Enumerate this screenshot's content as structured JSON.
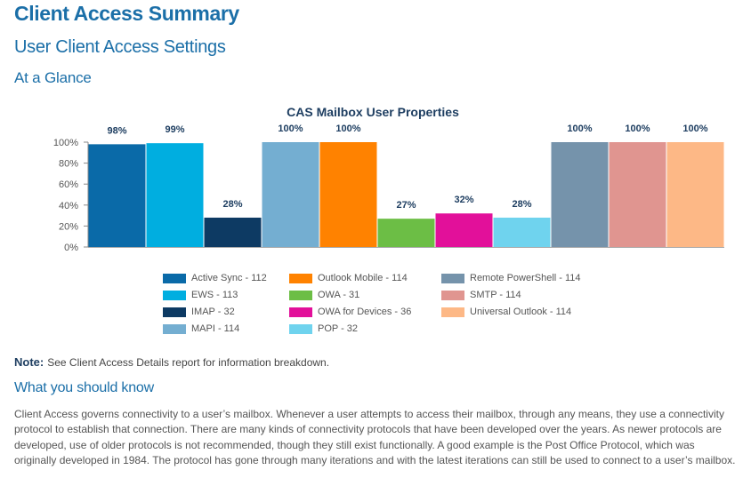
{
  "header": {
    "title": "Client Access Summary",
    "subtitle": "User Client Access Settings",
    "section": "At a Glance"
  },
  "chart_data": {
    "type": "bar",
    "title": "CAS Mailbox User Properties",
    "ylim": [
      0,
      100
    ],
    "y_ticks": [
      "0%",
      "20%",
      "40%",
      "60%",
      "80%",
      "100%"
    ],
    "grid": false,
    "legend_placement": "bottom",
    "categories": [
      "Active Sync - 112",
      "EWS - 113",
      "IMAP - 32",
      "MAPI - 114",
      "Outlook Mobile - 114",
      "OWA - 31",
      "OWA for Devices - 36",
      "POP - 32",
      "Remote PowerShell - 114",
      "SMTP - 114",
      "Universal Outlook - 114"
    ],
    "values": [
      98,
      99,
      28,
      100,
      100,
      27,
      32,
      28,
      100,
      100,
      100
    ],
    "value_labels": [
      "98%",
      "99%",
      "28%",
      "100%",
      "100%",
      "27%",
      "32%",
      "28%",
      "100%",
      "100%",
      "100%"
    ],
    "colors": [
      "#0a6aa8",
      "#00aee0",
      "#0d3a63",
      "#74aed1",
      "#ff8200",
      "#6cbe45",
      "#e2109a",
      "#6fd3ee",
      "#7593ab",
      "#e09590",
      "#fdb886"
    ]
  },
  "legend": {
    "columns": [
      [
        "Active Sync - 112",
        "EWS - 113",
        "IMAP - 32",
        "MAPI - 114"
      ],
      [
        "Outlook Mobile - 114",
        "OWA - 31",
        "OWA for Devices - 36",
        "POP - 32"
      ],
      [
        "Remote PowerShell - 114",
        "SMTP - 114",
        "Universal Outlook - 114"
      ]
    ],
    "colors": [
      [
        "#0a6aa8",
        "#00aee0",
        "#0d3a63",
        "#74aed1"
      ],
      [
        "#ff8200",
        "#6cbe45",
        "#e2109a",
        "#6fd3ee"
      ],
      [
        "#7593ab",
        "#e09590",
        "#fdb886"
      ]
    ]
  },
  "note": {
    "label": "Note:",
    "text": "See Client Access Details report for information breakdown."
  },
  "info": {
    "heading": "What you should know",
    "body": "Client Access governs connectivity to a user’s mailbox. Whenever a user attempts to access their mailbox, through any means, they use a connectivity protocol to establish that connection. There are many kinds of connectivity protocols that have been developed over the years. As newer protocols are developed, use of older protocols is not recommended, though they still exist functionally. A good example is the Post Office Protocol, which was originally developed in 1984. The protocol has gone through many iterations and with the latest iterations can still be used to connect to a user’s mailbox."
  }
}
